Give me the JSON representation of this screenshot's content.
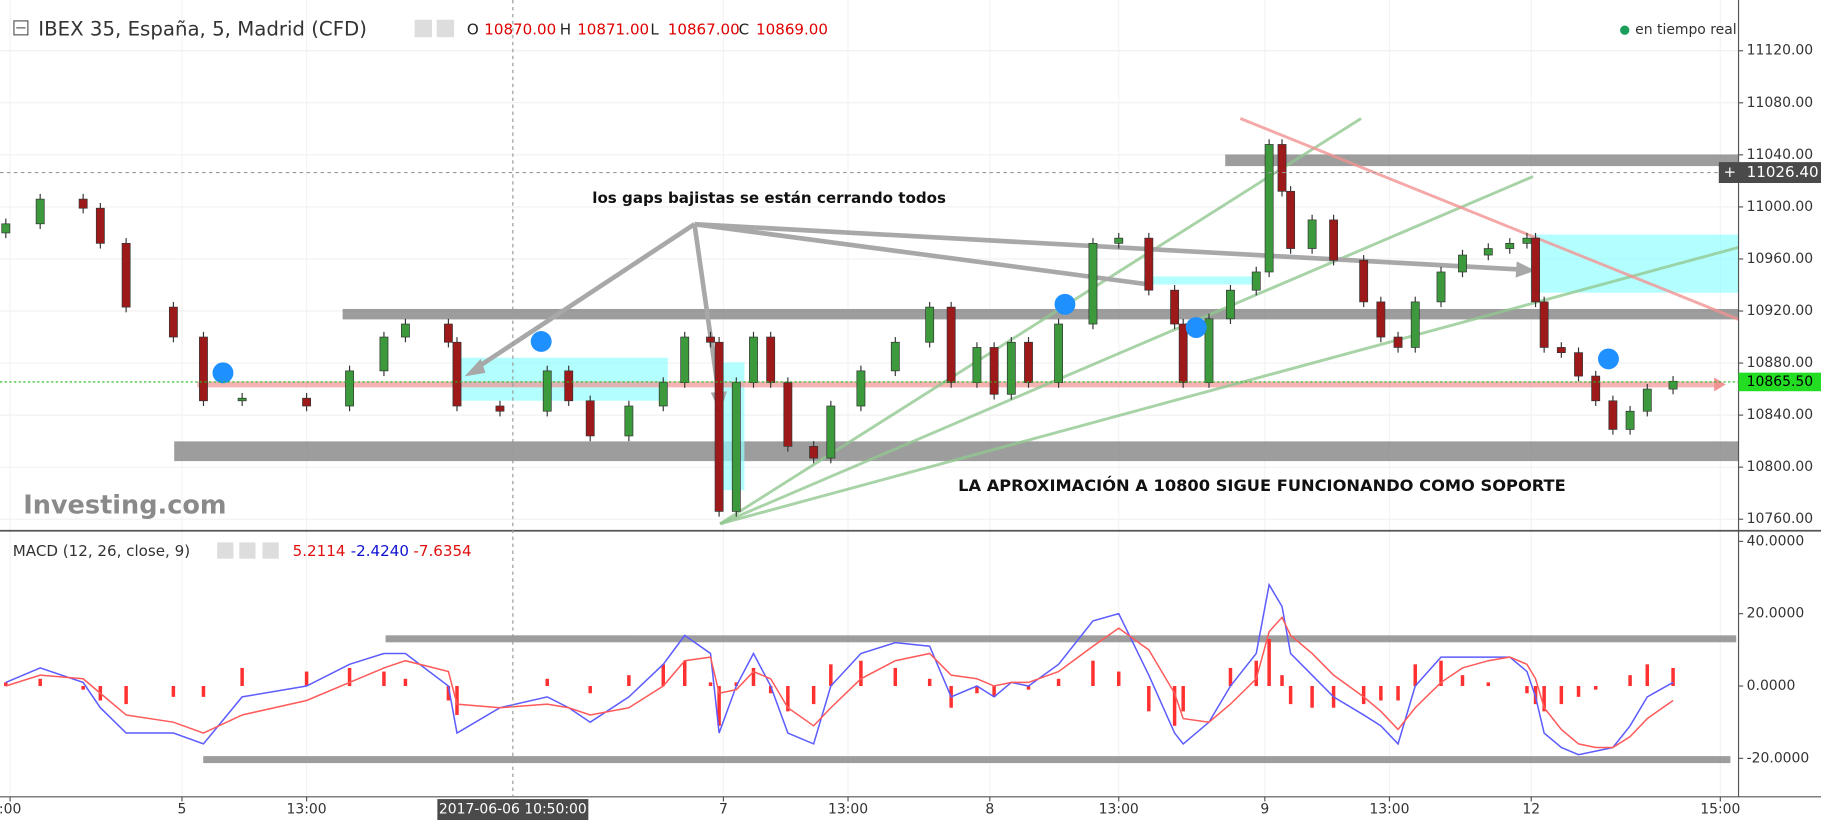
{
  "chart_data": [
    {
      "type": "candlestick",
      "title": "IBEX 35, España, 5, Madrid (CFD)",
      "ohlc": [
        {
          "label": "O",
          "value": "10870.00"
        },
        {
          "label": "H",
          "value": "10871.00"
        },
        {
          "label": "L",
          "value": "10867.00"
        },
        {
          "label": "C",
          "value": "10869.00"
        }
      ],
      "status": "en tiempo real",
      "logo": "Investing.com",
      "annotations": [
        "los gaps bajistas se están cerrando todos",
        "LA APROXIMACIÓN A 10800 SIGUE FUNCIONANDO COMO SOPORTE"
      ],
      "x": [
        0,
        8,
        18,
        22,
        28,
        39,
        46,
        55,
        70,
        80,
        88,
        93,
        103,
        105,
        115,
        126,
        131,
        136,
        145,
        153,
        158,
        164,
        166,
        170,
        174,
        178,
        182,
        188,
        192,
        199,
        207,
        215,
        220,
        226,
        230,
        234,
        238,
        245,
        253,
        259,
        266,
        272,
        274,
        280,
        285,
        291,
        294,
        297,
        299,
        304,
        309,
        316,
        320,
        324,
        328,
        334,
        339,
        345,
        350,
        354,
        356,
        358,
        362,
        366,
        370,
        374,
        378,
        382,
        388
      ],
      "open": [
        10980,
        10987,
        11006,
        10999,
        10972,
        10923,
        10900,
        10851,
        10853,
        10847,
        10874,
        10900,
        10910,
        10896,
        10847,
        10843,
        10874,
        10851,
        10824,
        10847,
        10865,
        10900,
        10896,
        10766,
        10865,
        10900,
        10865,
        10816,
        10807,
        10847,
        10874,
        10896,
        10923,
        10865,
        10892,
        10856,
        10896,
        10865,
        10910,
        10972,
        10976,
        10936,
        10910,
        10865,
        10914,
        10936,
        10950,
        11048,
        11012,
        10968,
        10990,
        10959,
        10927,
        10900,
        10892,
        10927,
        10950,
        10963,
        10968,
        10972,
        10976,
        10927,
        10892,
        10888,
        10870,
        10851,
        10829,
        10843,
        10860
      ],
      "high": [
        10991,
        11010,
        11010,
        11003,
        10976,
        10927,
        10904,
        10857,
        10857,
        10878,
        10904,
        10914,
        10914,
        10900,
        10851,
        10878,
        10878,
        10855,
        10851,
        10869,
        10904,
        10904,
        10900,
        10869,
        10904,
        10904,
        10869,
        10820,
        10851,
        10878,
        10900,
        10927,
        10927,
        10896,
        10896,
        10900,
        10900,
        10914,
        10976,
        10980,
        10980,
        10940,
        10914,
        10918,
        10940,
        10954,
        11052,
        11052,
        11016,
        10994,
        10994,
        10963,
        10931,
        10904,
        10931,
        10954,
        10967,
        10972,
        10976,
        10980,
        10980,
        10931,
        10896,
        10892,
        10874,
        10855,
        10847,
        10864,
        10870
      ],
      "low": [
        10976,
        10983,
        10995,
        10968,
        10919,
        10896,
        10847,
        10847,
        10843,
        10843,
        10870,
        10896,
        10892,
        10843,
        10839,
        10839,
        10847,
        10820,
        10820,
        10843,
        10861,
        10892,
        10762,
        10762,
        10861,
        10861,
        10812,
        10803,
        10803,
        10843,
        10870,
        10892,
        10861,
        10861,
        10852,
        10852,
        10861,
        10861,
        10906,
        10968,
        10932,
        10906,
        10861,
        10861,
        10910,
        10932,
        10946,
        11008,
        10964,
        10964,
        10955,
        10923,
        10896,
        10888,
        10888,
        10923,
        10946,
        10959,
        10964,
        10968,
        10923,
        10888,
        10884,
        10866,
        10847,
        10825,
        10825,
        10839,
        10856
      ],
      "close": [
        10987,
        11006,
        10999,
        10972,
        10923,
        10900,
        10851,
        10853,
        10847,
        10874,
        10900,
        10910,
        10896,
        10847,
        10843,
        10874,
        10851,
        10824,
        10847,
        10865,
        10900,
        10896,
        10766,
        10865,
        10900,
        10865,
        10816,
        10807,
        10847,
        10874,
        10896,
        10923,
        10865,
        10892,
        10856,
        10896,
        10865,
        10910,
        10972,
        10976,
        10936,
        10910,
        10865,
        10914,
        10936,
        10950,
        11048,
        11012,
        10968,
        10990,
        10959,
        10927,
        10900,
        10892,
        10927,
        10950,
        10963,
        10968,
        10972,
        10976,
        10927,
        10892,
        10888,
        10870,
        10851,
        10829,
        10843,
        10860,
        10866
      ],
      "up_color": "#3c9a3c",
      "down_color": "#9e1a1a",
      "xlim": [
        -1.35,
        403.24
      ],
      "ylim": [
        10752,
        11159
      ],
      "yticks": [
        {
          "value": 10760,
          "label": "10760.00"
        },
        {
          "value": 10800,
          "label": "10800.00"
        },
        {
          "value": 10840,
          "label": "10840.00"
        },
        {
          "value": 10880,
          "label": "10880.00"
        },
        {
          "value": 10920,
          "label": "10920.00"
        },
        {
          "value": 10960,
          "label": "10960.00"
        },
        {
          "value": 11000,
          "label": "11000.00"
        },
        {
          "value": 11040,
          "label": "11040.00"
        },
        {
          "value": 11080,
          "label": "11080.00"
        },
        {
          "value": 11120,
          "label": "11120.00"
        }
      ],
      "grid": true,
      "last_price": {
        "value": 10865.5,
        "label": "10865.50"
      },
      "crosshair_price": {
        "value": 11026.4,
        "label": "11026.40"
      }
    },
    {
      "type": "macd",
      "title": "MACD (12, 26, close, 9)",
      "legend_values": [
        {
          "value": 5.2114,
          "label": "5.2114",
          "color": "#e01010"
        },
        {
          "value": -2.424,
          "label": "-2.4240",
          "color": "#1010d0"
        },
        {
          "value": -7.6354,
          "label": "-7.6354",
          "color": "#e01010"
        }
      ],
      "x": [
        0,
        8,
        18,
        22,
        28,
        39,
        46,
        55,
        70,
        80,
        88,
        93,
        103,
        105,
        115,
        126,
        131,
        136,
        145,
        153,
        158,
        164,
        166,
        170,
        174,
        178,
        182,
        188,
        192,
        199,
        207,
        215,
        220,
        226,
        230,
        234,
        238,
        245,
        253,
        259,
        266,
        272,
        274,
        280,
        285,
        291,
        294,
        297,
        299,
        304,
        309,
        316,
        320,
        324,
        328,
        334,
        339,
        345,
        350,
        354,
        356,
        358,
        362,
        366,
        370,
        374,
        378,
        382,
        388
      ],
      "series": [
        {
          "color": "#5c5cff",
          "values": [
            1,
            5,
            1,
            -6,
            -13,
            -13,
            -16,
            -3,
            0,
            6,
            9,
            9,
            0,
            -13,
            -6,
            -3,
            -6,
            -10,
            -3,
            6,
            14,
            9,
            -13,
            0,
            9,
            0,
            -13,
            -16,
            0,
            9,
            12,
            11,
            -3,
            0,
            -3,
            1,
            0,
            6,
            18,
            20,
            3,
            -13,
            -16,
            -10,
            0,
            9,
            28,
            22,
            9,
            3,
            -3,
            -8,
            -11,
            -16,
            0,
            8,
            8,
            8,
            8,
            4,
            -3,
            -13,
            -17,
            -19,
            -18,
            -17,
            -11,
            -3,
            1
          ]
        },
        {
          "color": "#ff5a5a",
          "values": [
            0,
            3,
            2,
            -2,
            -8,
            -10,
            -13,
            -8,
            -4,
            1,
            5,
            7,
            4,
            -5,
            -6,
            -5,
            -6,
            -8,
            -6,
            0,
            7,
            8,
            -2,
            -1,
            4,
            2,
            -6,
            -11,
            -6,
            2,
            7,
            9,
            3,
            2,
            0,
            1,
            1,
            4,
            11,
            16,
            10,
            -2,
            -9,
            -10,
            -5,
            2,
            15,
            19,
            14,
            9,
            3,
            -3,
            -7,
            -12,
            -6,
            1,
            5,
            7,
            8,
            6,
            2,
            -6,
            -12,
            -16,
            -17,
            -17,
            -14,
            -9,
            -4
          ]
        }
      ],
      "histogram": {
        "color": "#ff3030",
        "values": [
          1,
          2,
          -1,
          -4,
          -5,
          -3,
          -3,
          5,
          4,
          5,
          4,
          2,
          -4,
          -8,
          0,
          2,
          0,
          -2,
          3,
          6,
          7,
          1,
          -11,
          1,
          5,
          -2,
          -7,
          -5,
          6,
          7,
          5,
          2,
          -6,
          -2,
          -3,
          0,
          -1,
          2,
          7,
          4,
          -7,
          -11,
          -7,
          0,
          5,
          7,
          13,
          3,
          -5,
          -6,
          -6,
          -5,
          -4,
          -4,
          6,
          7,
          3,
          1,
          0,
          -2,
          -5,
          -7,
          -5,
          -3,
          -1,
          0,
          3,
          6,
          5
        ]
      },
      "xlim": [
        -1.35,
        403.24
      ],
      "ylim": [
        -30.3,
        42.6
      ],
      "yticks": [
        {
          "value": -20,
          "label": "-20.0000"
        },
        {
          "value": 0,
          "label": "0.0000"
        },
        {
          "value": 20,
          "label": "20.0000"
        },
        {
          "value": 40,
          "label": "40.0000"
        }
      ],
      "xticks": [
        {
          "value": 1,
          "label": ":00"
        },
        {
          "value": 41,
          "label": "5"
        },
        {
          "value": 70,
          "label": "13:00"
        },
        {
          "value": 167,
          "label": "7"
        },
        {
          "value": 196,
          "label": "13:00"
        },
        {
          "value": 229,
          "label": "8"
        },
        {
          "value": 259,
          "label": "13:00"
        },
        {
          "value": 293,
          "label": "9"
        },
        {
          "value": 322,
          "label": "13:00"
        },
        {
          "value": 355,
          "label": "12"
        },
        {
          "value": 399,
          "label": "15:00"
        }
      ],
      "crosshair_time": {
        "value": 118,
        "label": "2017-06-06 10:50:00"
      }
    }
  ]
}
